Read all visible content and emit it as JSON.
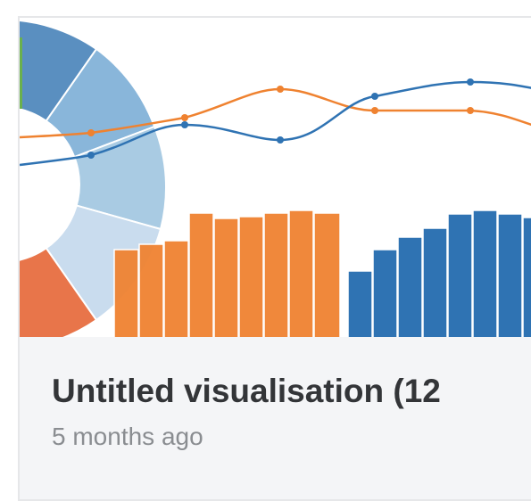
{
  "card": {
    "title": "Untitled visualisation (12",
    "subtitle": "5 months ago"
  }
}
